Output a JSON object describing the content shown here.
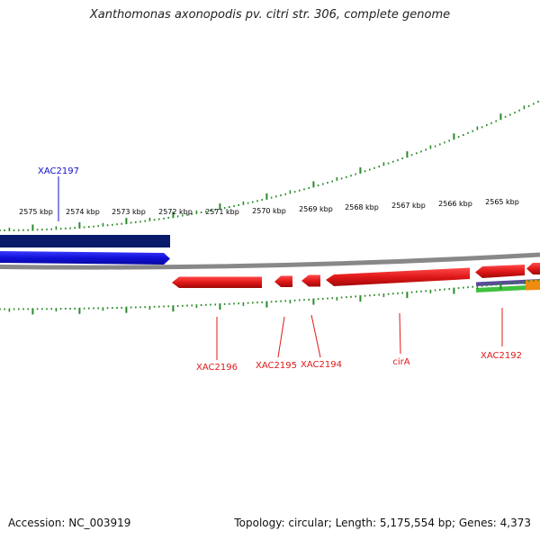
{
  "title": "Xanthomonas axonopodis pv. citri str. 306, complete genome",
  "footer": {
    "accession": "Accession: NC_003919",
    "summary": "Topology: circular; Length: 5,175,554 bp; Genes: 4,373"
  },
  "scale": {
    "unit": "kbp",
    "ticks": [
      "2575 kbp",
      "2574 kbp",
      "2573 kbp",
      "2572 kbp",
      "2571 kbp",
      "2570 kbp",
      "2569 kbp",
      "2568 kbp",
      "2567 kbp",
      "2566 kbp",
      "2565 kbp"
    ]
  },
  "genes": [
    {
      "name": "XAC2197",
      "strand": "forward",
      "color": "#1010cc"
    },
    {
      "name": "XAC2196",
      "strand": "reverse",
      "color": "#e01818"
    },
    {
      "name": "XAC2195",
      "strand": "reverse",
      "color": "#e01818"
    },
    {
      "name": "XAC2194",
      "strand": "reverse",
      "color": "#e01818"
    },
    {
      "name": "cirA",
      "strand": "reverse",
      "color": "#e01818"
    },
    {
      "name": "XAC2192",
      "strand": "reverse",
      "color": "#e01818"
    }
  ],
  "colors": {
    "backbone": "#888888",
    "tick": "#2a8a2a",
    "forward_gene": "#1010cc",
    "forward_region": "#0a1a6a",
    "reverse_gene": "#e01818",
    "extra_purple": "#5a4a9a",
    "extra_green": "#40c040",
    "extra_orange": "#f08a10"
  }
}
